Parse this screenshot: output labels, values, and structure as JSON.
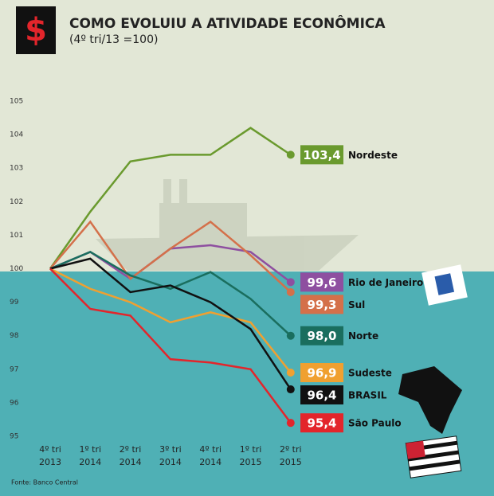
{
  "chart_data": {
    "type": "line",
    "title": "COMO EVOLUIU A ATIVIDADE ECONÔMICA",
    "subtitle": "(4º tri/13 =100)",
    "source": "Fonte: Banco Central",
    "categories": [
      [
        "4º tri",
        "2013"
      ],
      [
        "1º tri",
        "2014"
      ],
      [
        "2º tri",
        "2014"
      ],
      [
        "3º tri",
        "2014"
      ],
      [
        "4º tri",
        "2014"
      ],
      [
        "1º tri",
        "2015"
      ],
      [
        "2º tri",
        "2015"
      ]
    ],
    "ylim": [
      95,
      105
    ],
    "yticks": [
      95,
      96,
      97,
      98,
      99,
      100,
      101,
      102,
      103,
      104,
      105
    ],
    "series": [
      {
        "name": "Nordeste",
        "color": "#6a9a2e",
        "values": [
          100,
          101.7,
          103.2,
          103.4,
          103.4,
          104.2,
          103.4
        ],
        "value_labels": [
          null,
          null,
          null,
          null,
          null,
          null,
          "103,4"
        ]
      },
      {
        "name": "Rio de Janeiro",
        "color": "#8e4fa0",
        "values": [
          100,
          100.5,
          99.7,
          100.6,
          100.7,
          100.5,
          99.6
        ],
        "value_labels": [
          null,
          null,
          null,
          null,
          null,
          null,
          "99,6"
        ]
      },
      {
        "name": "Sul",
        "color": "#d4704a",
        "values": [
          100,
          101.4,
          99.7,
          100.6,
          101.4,
          100.4,
          99.3
        ],
        "value_labels": [
          null,
          null,
          null,
          null,
          null,
          null,
          "99,3"
        ]
      },
      {
        "name": "Norte",
        "color": "#1a6e5e",
        "values": [
          100,
          100.5,
          99.8,
          99.4,
          99.9,
          99.1,
          98.0
        ],
        "value_labels": [
          null,
          null,
          null,
          null,
          null,
          null,
          "98,0"
        ]
      },
      {
        "name": "Sudeste",
        "color": "#f0a030",
        "values": [
          100,
          99.4,
          99.0,
          98.4,
          98.7,
          98.4,
          96.9
        ],
        "value_labels": [
          null,
          null,
          null,
          null,
          null,
          null,
          "96,9"
        ]
      },
      {
        "name": "BRASIL",
        "color": "#111111",
        "values": [
          100,
          100.3,
          99.3,
          99.5,
          99.0,
          98.2,
          96.4
        ],
        "value_labels": [
          null,
          null,
          null,
          null,
          null,
          null,
          "96,4"
        ]
      },
      {
        "name": "São Paulo",
        "color": "#e3252b",
        "values": [
          100,
          98.8,
          98.6,
          97.3,
          97.2,
          97.0,
          95.4
        ],
        "value_labels": [
          null,
          null,
          null,
          null,
          null,
          null,
          "95,4"
        ]
      }
    ]
  }
}
